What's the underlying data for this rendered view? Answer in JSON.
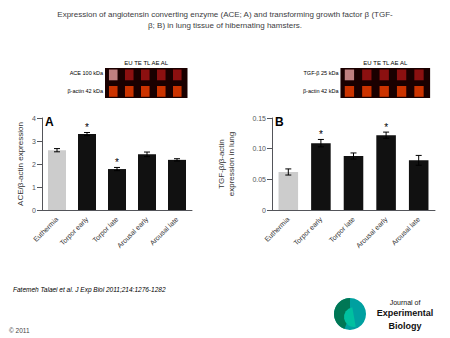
{
  "title": "Expression of angiotensin converting enzyme (ACE; A) and transforming growth factor β (TGF-\nβ; B) in lung tissue of hibernating hamsters.",
  "annotations": [
    "Fatemeh Talaei et al. J Exp Biol 2011;214:1276-1282",
    "© 2011",
    "Journal of",
    "Experimental",
    "Biology"
  ],
  "chart_data": [
    {
      "type": "bar",
      "title": "A",
      "categories": [
        "Euthermia",
        "Torpor early",
        "Torpor late",
        "Arousal early",
        "Arousal late"
      ],
      "values": [
        2.6,
        3.3,
        1.78,
        2.42,
        2.18
      ],
      "errors": [
        0.07,
        0.07,
        0.07,
        0.1,
        0.05
      ],
      "colors": [
        "#cccccc",
        "#111111",
        "#111111",
        "#111111",
        "#111111"
      ],
      "ylabel": "ACE/β-actin expression",
      "ylim": [
        0,
        4
      ],
      "yticks": [
        0,
        1,
        2,
        3,
        4
      ],
      "grid": false,
      "annotations": [
        {
          "text": "*",
          "x": "Torpor early"
        },
        {
          "text": "*",
          "x": "Torpor late"
        }
      ],
      "inset_labels": [
        "EU TE TL AE AL",
        "ACE 100 kDa",
        "β-actin 42 kDa"
      ]
    },
    {
      "type": "bar",
      "title": "B",
      "categories": [
        "Euthermia",
        "Torpor early",
        "Torpor late",
        "Arousal early",
        "Arousal late"
      ],
      "values": [
        0.062,
        0.109,
        0.088,
        0.122,
        0.081
      ],
      "errors": [
        0.005,
        0.006,
        0.005,
        0.005,
        0.008
      ],
      "colors": [
        "#cccccc",
        "#111111",
        "#111111",
        "#111111",
        "#111111"
      ],
      "ylabel": "TGF-β/β-actin\nexpression in lung",
      "ylim": [
        0,
        0.15
      ],
      "yticks": [
        0,
        0.05,
        {
          "value": 0.1,
          "label": "0.10"
        },
        0.15
      ],
      "grid": false,
      "annotations": [
        {
          "text": "*",
          "x": "Torpor early"
        },
        {
          "text": "*",
          "x": "Arousal early"
        }
      ],
      "inset_labels": [
        "EU TE TL AE AL",
        "TGF-β 25 kDa",
        "β-actin 42 kDa"
      ]
    }
  ]
}
